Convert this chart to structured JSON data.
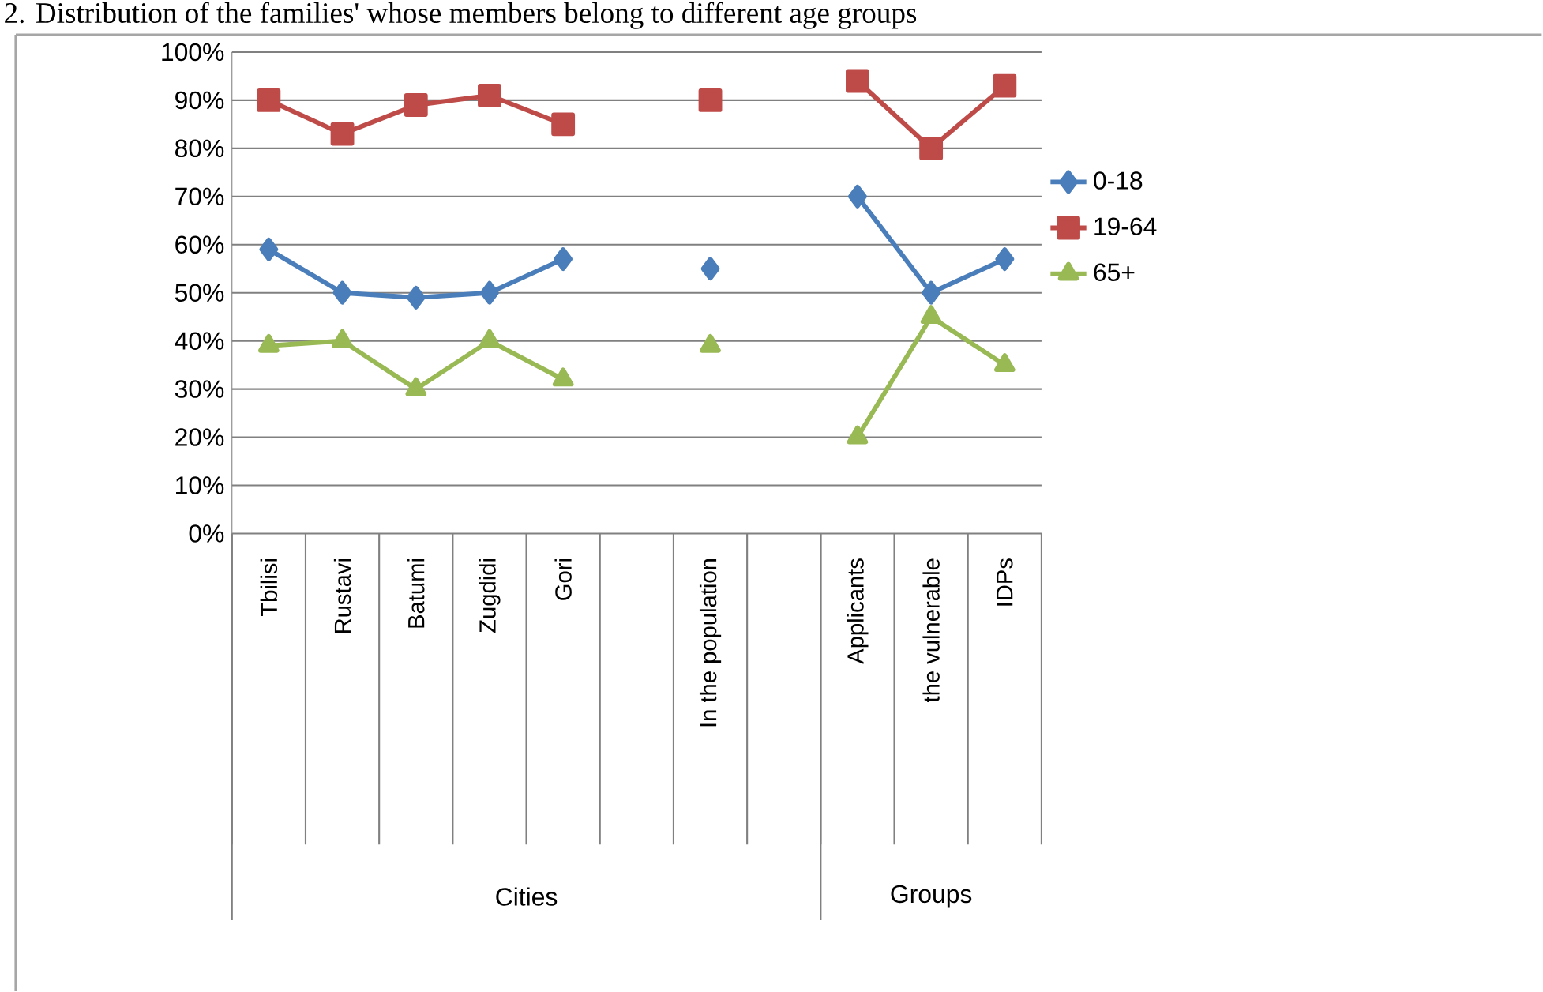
{
  "chart_data": {
    "type": "line",
    "title": "2. Distribution of the families' whose members belong to different age groups",
    "categories": [
      "Tbilisi",
      "Rustavi",
      "Batumi",
      "Zugdidi",
      "Gori",
      null,
      "In the population",
      null,
      "Applicants",
      "the vulnerable",
      "IDPs"
    ],
    "series": [
      {
        "name": "0-18",
        "color": "#4a7ebb",
        "marker": "diamond",
        "values": [
          59,
          50,
          49,
          50,
          57,
          null,
          55,
          null,
          70,
          50,
          57
        ]
      },
      {
        "name": "19-64",
        "color": "#be4b48",
        "marker": "square",
        "values": [
          90,
          83,
          89,
          91,
          85,
          null,
          90,
          null,
          94,
          80,
          93
        ]
      },
      {
        "name": "65+",
        "color": "#98b954",
        "marker": "triangle",
        "values": [
          39,
          40,
          30,
          40,
          32,
          null,
          39,
          null,
          20,
          45,
          35
        ]
      }
    ],
    "ylim": [
      0,
      100
    ],
    "yticks": [
      {
        "value": 0,
        "label": "0%"
      },
      {
        "value": 10,
        "label": "10%"
      },
      {
        "value": 20,
        "label": "20%"
      },
      {
        "value": 30,
        "label": "30%"
      },
      {
        "value": 40,
        "label": "40%"
      },
      {
        "value": 50,
        "label": "50%"
      },
      {
        "value": 60,
        "label": "60%"
      },
      {
        "value": 70,
        "label": "70%"
      },
      {
        "value": 80,
        "label": "80%"
      },
      {
        "value": 90,
        "label": "90%"
      },
      {
        "value": 100,
        "label": "100%"
      }
    ],
    "grid": "y",
    "legend": "right",
    "annotations": [
      "Cities",
      "Groups"
    ]
  }
}
